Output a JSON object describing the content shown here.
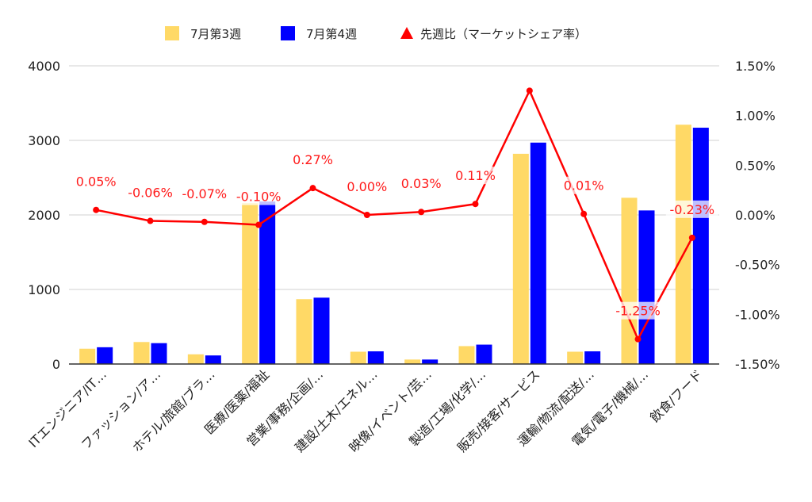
{
  "chart_data": {
    "type": "bar",
    "categories": [
      "ITエンジニア/IT…",
      "ファッション/ア…",
      "ホテル/旅館/ブラ…",
      "医療/医薬/福祉",
      "営業/事務/企画/…",
      "建設/土木/エネル…",
      "映像/イベント/芸…",
      "製造/工場/化学/…",
      "販売/接客/サービス",
      "運輸/物流/配送/…",
      "電気/電子/機械/…",
      "飲食/フード"
    ],
    "series": [
      {
        "name": "7月第3週",
        "type": "bar",
        "axis": "left",
        "color": "#ffd966",
        "values": [
          205,
          295,
          130,
          2160,
          870,
          165,
          60,
          240,
          2820,
          165,
          2230,
          3210
        ]
      },
      {
        "name": "7月第4週",
        "type": "bar",
        "axis": "left",
        "color": "#0000ff",
        "values": [
          225,
          280,
          115,
          2180,
          890,
          170,
          60,
          260,
          2970,
          170,
          2060,
          3170
        ]
      },
      {
        "name": "先週比（マーケットシェア率）",
        "type": "line",
        "axis": "right",
        "color": "#ff0000",
        "values": [
          0.05,
          -0.06,
          -0.07,
          -0.1,
          0.27,
          0.0,
          0.03,
          0.11,
          1.25,
          0.01,
          -1.25,
          -0.23
        ],
        "labels": [
          "0.05%",
          "-0.06%",
          "-0.07%",
          "-0.10%",
          "0.27%",
          "0.00%",
          "0.03%",
          "0.11%",
          "",
          "0.01%",
          "-1.25%",
          "-0.23%"
        ]
      }
    ],
    "left_axis": {
      "min": 0,
      "max": 4000,
      "ticks": [
        "0",
        "1000",
        "2000",
        "3000",
        "4000"
      ]
    },
    "right_axis": {
      "min": -1.5,
      "max": 1.5,
      "ticks": [
        "-1.50%",
        "-1.00%",
        "-0.50%",
        "0.00%",
        "0.50%",
        "1.00%",
        "1.50%"
      ]
    },
    "grid": true,
    "legend_position": "top"
  }
}
